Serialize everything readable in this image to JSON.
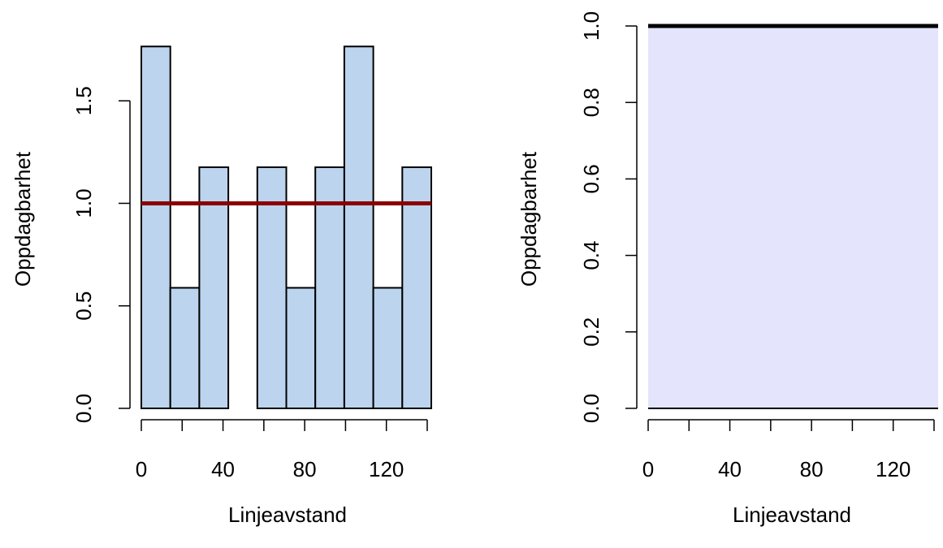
{
  "chart_data": [
    {
      "type": "bar",
      "xlabel": "Linjeavstand",
      "ylabel": "Oppdagbarhet",
      "xlim": [
        0,
        142
      ],
      "ylim": [
        0,
        1.77
      ],
      "xticks": [
        0,
        20,
        40,
        60,
        80,
        100,
        120,
        140
      ],
      "xtick_labels": [
        "0",
        "",
        "40",
        "",
        "80",
        "",
        "120",
        ""
      ],
      "yticks": [
        0,
        0.5,
        1.0,
        1.5
      ],
      "ytick_labels": [
        "0.0",
        "0.5",
        "1.0",
        "1.5"
      ],
      "bin_edges": [
        0,
        14.2,
        28.4,
        42.6,
        56.8,
        71,
        85.2,
        99.4,
        113.6,
        127.8,
        142
      ],
      "values": [
        1.765,
        0.588,
        1.176,
        0,
        1.176,
        0.588,
        1.176,
        1.765,
        0.588,
        1.176
      ],
      "detection_line": {
        "x": [
          0,
          142
        ],
        "y": [
          1,
          1
        ]
      },
      "colors": {
        "bar_fill": "#bcd4ee",
        "bar_stroke": "#000000",
        "line": "#8b0000"
      },
      "grid": false
    },
    {
      "type": "area",
      "xlabel": "Linjeavstand",
      "ylabel": "Oppdagbarhet",
      "xlim": [
        0,
        142
      ],
      "ylim": [
        0,
        1
      ],
      "xticks": [
        0,
        20,
        40,
        60,
        80,
        100,
        120,
        140
      ],
      "xtick_labels": [
        "0",
        "",
        "40",
        "",
        "80",
        "",
        "120",
        ""
      ],
      "yticks": [
        0,
        0.2,
        0.4,
        0.6,
        0.8,
        1.0
      ],
      "ytick_labels": [
        "0.0",
        "0.2",
        "0.4",
        "0.6",
        "0.8",
        "1.0"
      ],
      "x": [
        0,
        142
      ],
      "y": [
        1,
        1
      ],
      "colors": {
        "fill": "#e4e4fd",
        "line": "#000000"
      },
      "grid": false
    }
  ]
}
